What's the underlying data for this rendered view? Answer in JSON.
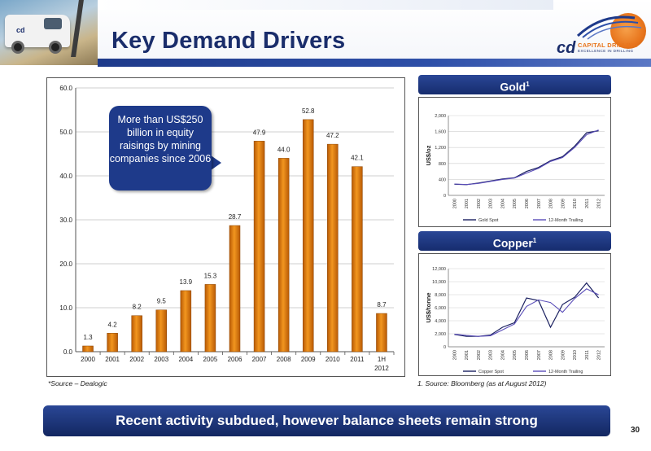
{
  "slide": {
    "title": "Key Demand Drivers",
    "footer": "Recent activity subdued, however balance sheets remain strong",
    "page_number": "30",
    "source_left": "*Source – Dealogic",
    "source_right": "1.   Source: Bloomberg (as at August 2012)"
  },
  "logo": {
    "mark": "cd",
    "name": "CAPITAL DRILLING",
    "tagline": "EXCELLENCE IN DRILLING"
  },
  "truck": {
    "door_text": "cd"
  },
  "callout": {
    "text": "More than US$250 billion in equity raisings by mining companies since 2006"
  },
  "colors": {
    "bar": "#e07a10",
    "navy": "#1e3a8a",
    "orange": "#e8751c"
  },
  "panels": {
    "gold": {
      "heading": "Gold",
      "sup": "1"
    },
    "copper": {
      "heading": "Copper",
      "sup": "1"
    }
  },
  "chart_data": [
    {
      "type": "bar",
      "categories": [
        "2000",
        "2001",
        "2002",
        "2003",
        "2004",
        "2005",
        "2006",
        "2007",
        "2008",
        "2009",
        "2010",
        "2011",
        "1H 2012"
      ],
      "values": [
        1.3,
        4.2,
        8.2,
        9.5,
        13.9,
        15.3,
        28.7,
        47.9,
        44.0,
        52.8,
        47.2,
        42.1,
        8.7
      ],
      "value_labels": [
        "1.3",
        "4.2",
        "8.2",
        "9.5",
        "13.9",
        "15.3",
        "28.7",
        "47.9",
        "44.0",
        "52.8",
        "47.2",
        "42.1",
        "8.7"
      ],
      "yticks": [
        "0.0",
        "10.0",
        "20.0",
        "30.0",
        "40.0",
        "50.0",
        "60.0"
      ],
      "ylim": [
        0,
        60
      ],
      "grid": true
    },
    {
      "type": "line",
      "ylabel": "US$/oz",
      "x": [
        "2000",
        "2001",
        "2002",
        "2003",
        "2004",
        "2005",
        "2006",
        "2007",
        "2008",
        "2009",
        "2010",
        "2011",
        "2012"
      ],
      "yticks": [
        "0",
        "400",
        "800",
        "1,200",
        "1,600",
        "2,000"
      ],
      "ylim": [
        0,
        2000
      ],
      "grid": true,
      "series": [
        {
          "name": "Gold Spot",
          "values": [
            280,
            270,
            310,
            360,
            410,
            440,
            600,
            700,
            870,
            970,
            1230,
            1570,
            1620
          ]
        },
        {
          "name": "12-Month Trailing",
          "values": [
            285,
            272,
            300,
            350,
            400,
            435,
            560,
            680,
            850,
            950,
            1200,
            1520,
            1640
          ]
        }
      ]
    },
    {
      "type": "line",
      "ylabel": "US$/tonne",
      "x": [
        "2000",
        "2001",
        "2002",
        "2003",
        "2004",
        "2005",
        "2006",
        "2007",
        "2008",
        "2009",
        "2010",
        "2011",
        "2012"
      ],
      "yticks": [
        "0",
        "2,000",
        "4,000",
        "6,000",
        "8,000",
        "10,000",
        "12,000"
      ],
      "ylim": [
        0,
        12000
      ],
      "grid": true,
      "series": [
        {
          "name": "Copper Spot",
          "values": [
            1900,
            1600,
            1600,
            1800,
            3000,
            3700,
            7500,
            7100,
            3000,
            6500,
            7600,
            9800,
            7500
          ]
        },
        {
          "name": "12-Month Trailing",
          "values": [
            1950,
            1750,
            1600,
            1700,
            2600,
            3500,
            6200,
            7200,
            6800,
            5300,
            7400,
            8900,
            8000
          ]
        }
      ]
    }
  ]
}
